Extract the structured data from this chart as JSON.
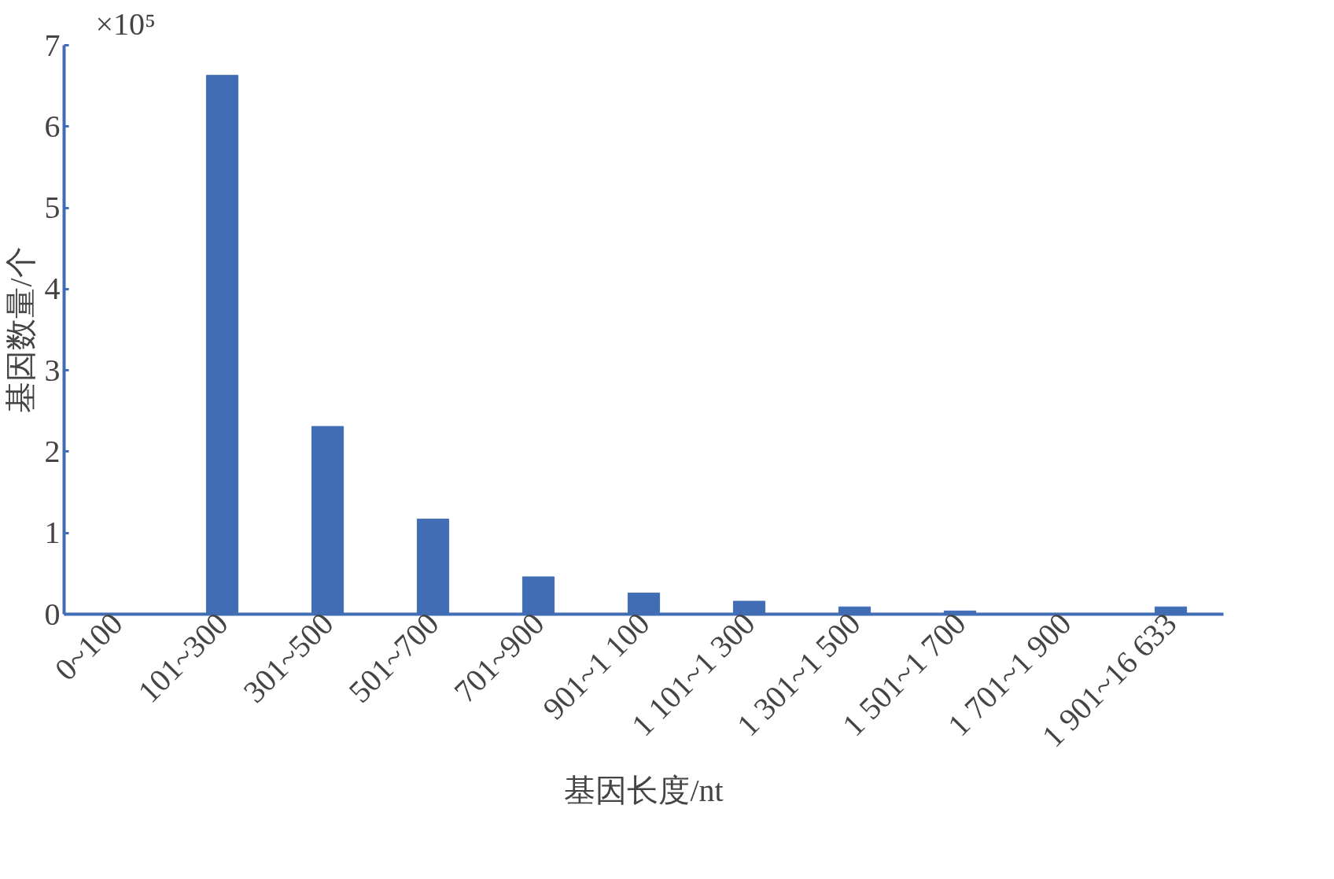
{
  "chart_data": {
    "type": "bar",
    "xlabel": "基因长度/nt",
    "ylabel": "基因数量/个",
    "annotations": [
      "×10⁵"
    ],
    "categories": [
      "0~100",
      "101~300",
      "301~500",
      "501~700",
      "701~900",
      "901~1 100",
      "1 101~1 300",
      "1 301~1 500",
      "1 501~1 700",
      "1 701~1 900",
      "1 901~16 633"
    ],
    "values": [
      0,
      6.63,
      2.31,
      1.17,
      0.46,
      0.26,
      0.16,
      0.09,
      0.04,
      0,
      0.09
    ],
    "color": "#416db5",
    "ylim": [
      0,
      7
    ],
    "yticks": [
      0,
      1,
      2,
      3,
      4,
      5,
      6,
      7
    ],
    "grid": false
  }
}
